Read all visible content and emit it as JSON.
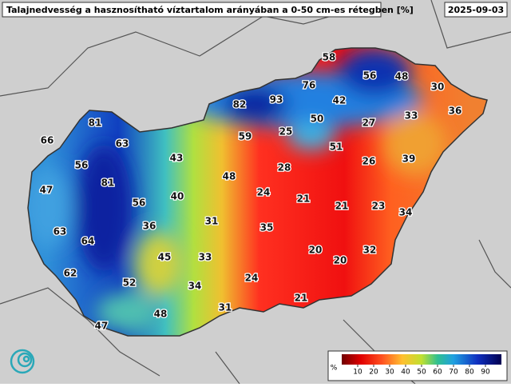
{
  "header": {
    "title": "Talajnedvesség a hasznosítható víztartalom arányában a 0-50 cm-es rétegben [%]",
    "date": "2025-09-03"
  },
  "stations": [
    66,
    81,
    63,
    56,
    47,
    81,
    56,
    43,
    40,
    36,
    63,
    64,
    62,
    45,
    52,
    31,
    33,
    34,
    48,
    47,
    31,
    48,
    59,
    82,
    93,
    76,
    58,
    56,
    48,
    30,
    42,
    50,
    25,
    27,
    33,
    36,
    51,
    28,
    26,
    39,
    24,
    21,
    21,
    23,
    34,
    35,
    20,
    20,
    32,
    24,
    21
  ],
  "colorbar": {
    "unit": "%",
    "lim": [
      0,
      100
    ],
    "ticks": [
      10,
      20,
      30,
      40,
      50,
      60,
      70,
      80,
      90
    ]
  }
}
